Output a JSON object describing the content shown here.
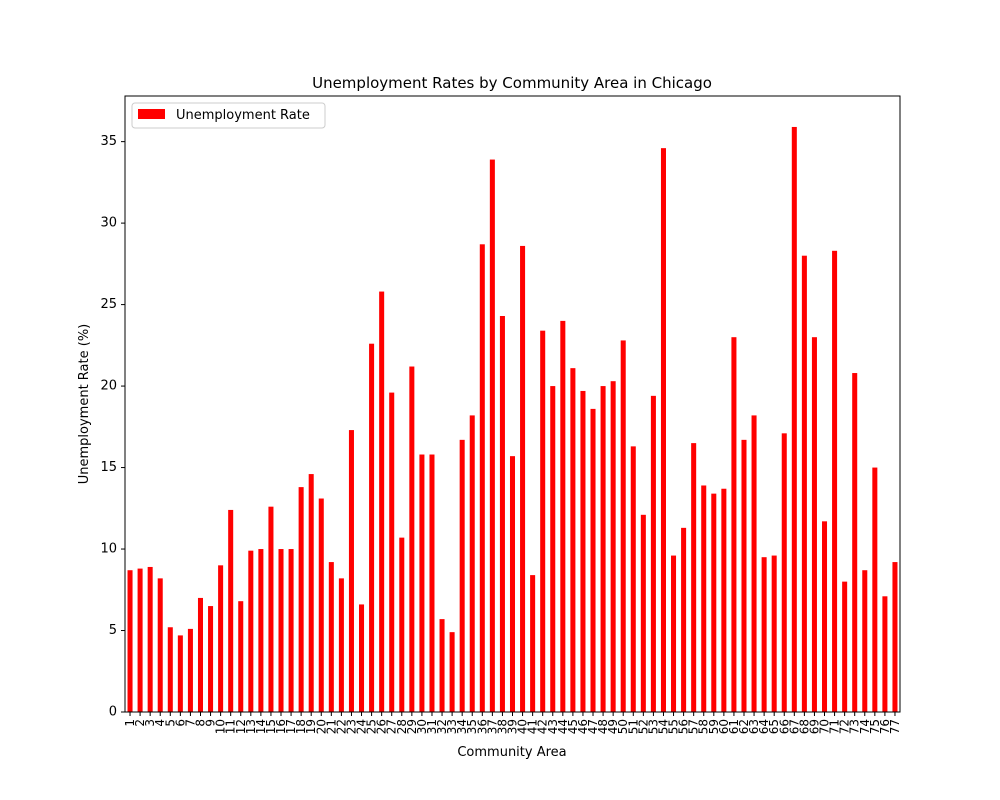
{
  "chart_data": {
    "type": "bar",
    "title": "Unemployment Rates by Community Area in Chicago",
    "xlabel": "Community Area",
    "ylabel": "Unemployment Rate (%)",
    "ylim": [
      0,
      37.8
    ],
    "yticks": [
      0,
      5,
      10,
      15,
      20,
      25,
      30,
      35
    ],
    "grid": false,
    "legend_position": "top-left",
    "categories": [
      "1",
      "2",
      "3",
      "4",
      "5",
      "6",
      "7",
      "8",
      "9",
      "10",
      "11",
      "12",
      "13",
      "14",
      "15",
      "16",
      "17",
      "18",
      "19",
      "20",
      "21",
      "22",
      "23",
      "24",
      "25",
      "26",
      "27",
      "28",
      "29",
      "30",
      "31",
      "32",
      "33",
      "34",
      "35",
      "36",
      "37",
      "38",
      "39",
      "40",
      "41",
      "42",
      "43",
      "44",
      "45",
      "46",
      "47",
      "48",
      "49",
      "50",
      "51",
      "52",
      "53",
      "54",
      "55",
      "56",
      "57",
      "58",
      "59",
      "60",
      "61",
      "62",
      "63",
      "64",
      "65",
      "66",
      "67",
      "68",
      "69",
      "70",
      "71",
      "72",
      "73",
      "74",
      "75",
      "76",
      "77"
    ],
    "series": [
      {
        "name": "Unemployment Rate",
        "color": "#ff0000",
        "values": [
          8.7,
          8.8,
          8.9,
          8.2,
          5.2,
          4.7,
          5.1,
          7.0,
          6.5,
          9.0,
          12.4,
          6.8,
          9.9,
          10.0,
          12.6,
          10.0,
          10.0,
          13.8,
          14.6,
          13.1,
          9.2,
          8.2,
          17.3,
          6.6,
          22.6,
          25.8,
          19.6,
          10.7,
          21.2,
          15.8,
          15.8,
          5.7,
          4.9,
          16.7,
          18.2,
          28.7,
          33.9,
          24.3,
          15.7,
          28.6,
          8.4,
          23.4,
          20.0,
          24.0,
          21.1,
          19.7,
          18.6,
          20.0,
          20.3,
          22.8,
          16.3,
          12.1,
          19.4,
          34.6,
          9.6,
          11.3,
          16.5,
          13.9,
          13.4,
          13.7,
          23.0,
          16.7,
          18.2,
          9.5,
          9.6,
          17.1,
          35.9,
          28.0,
          23.0,
          11.7,
          28.3,
          8.0,
          20.8,
          8.7,
          15.0,
          7.1,
          9.2
        ]
      }
    ]
  }
}
